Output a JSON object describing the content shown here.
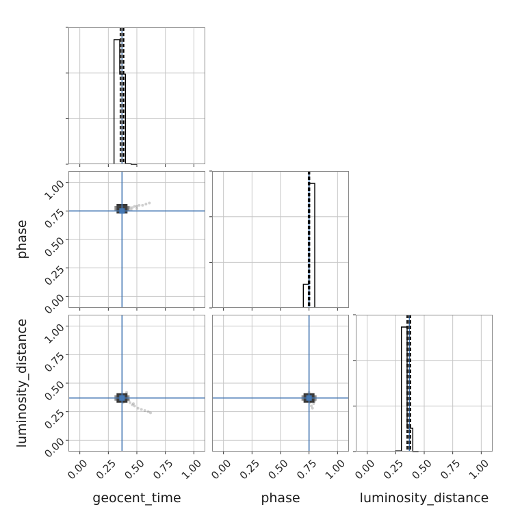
{
  "chart_data": {
    "type": "corner",
    "parameters": [
      "geocent_time",
      "phase",
      "luminosity_distance"
    ],
    "ticks": [
      "0.00",
      "0.25",
      "0.50",
      "0.75",
      "1.00"
    ],
    "tick_values": [
      0.0,
      0.25,
      0.5,
      0.75,
      1.0
    ],
    "axis_range": [
      -0.1,
      1.1
    ],
    "grid": true,
    "truth_color": "#4477b3",
    "truths": {
      "geocent_time": 0.37,
      "phase": 0.75,
      "luminosity_distance": 0.37
    },
    "histograms": [
      {
        "parameter": "geocent_time",
        "bin_edges": [
          0.3,
          0.35,
          0.4,
          0.45,
          0.5
        ],
        "values": [
          0.94,
          0.68,
          0.005,
          0
        ],
        "quantiles": [
          0.355,
          0.37,
          0.385
        ]
      },
      {
        "parameter": "phase",
        "bin_edges": [
          0.7,
          0.75,
          0.8
        ],
        "values": [
          0.19,
          1.0
        ],
        "quantiles": [
          0.745,
          0.75,
          0.755
        ]
      },
      {
        "parameter": "luminosity_distance",
        "bin_edges": [
          0.25,
          0.3,
          0.35,
          0.4,
          0.45
        ],
        "values": [
          0.005,
          0.96,
          0.18,
          0
        ],
        "quantiles": [
          0.35,
          0.365,
          0.38
        ]
      }
    ],
    "scatter_panels": [
      {
        "x": "geocent_time",
        "y": "phase",
        "core": {
          "x": 0.37,
          "y": 0.77
        },
        "points": [
          [
            0.37,
            0.76
          ],
          [
            0.35,
            0.77
          ],
          [
            0.39,
            0.78
          ],
          [
            0.38,
            0.75
          ],
          [
            0.36,
            0.74
          ],
          [
            0.4,
            0.76
          ],
          [
            0.42,
            0.77
          ],
          [
            0.44,
            0.78
          ],
          [
            0.46,
            0.78
          ],
          [
            0.48,
            0.79
          ],
          [
            0.5,
            0.79
          ],
          [
            0.52,
            0.8
          ],
          [
            0.55,
            0.8
          ],
          [
            0.58,
            0.81
          ],
          [
            0.61,
            0.82
          ],
          [
            0.45,
            0.76
          ],
          [
            0.5,
            0.77
          ]
        ]
      },
      {
        "x": "geocent_time",
        "y": "luminosity_distance",
        "core": {
          "x": 0.37,
          "y": 0.37
        },
        "points": [
          [
            0.37,
            0.38
          ],
          [
            0.36,
            0.36
          ],
          [
            0.39,
            0.37
          ],
          [
            0.4,
            0.4
          ],
          [
            0.41,
            0.42
          ],
          [
            0.38,
            0.33
          ],
          [
            0.35,
            0.37
          ],
          [
            0.42,
            0.36
          ],
          [
            0.44,
            0.33
          ],
          [
            0.46,
            0.31
          ],
          [
            0.48,
            0.3
          ],
          [
            0.51,
            0.28
          ],
          [
            0.54,
            0.27
          ],
          [
            0.57,
            0.26
          ],
          [
            0.6,
            0.25
          ],
          [
            0.62,
            0.24
          ],
          [
            0.43,
            0.35
          ],
          [
            0.47,
            0.32
          ]
        ]
      },
      {
        "x": "phase",
        "y": "luminosity_distance",
        "core": {
          "x": 0.75,
          "y": 0.37
        },
        "points": [
          [
            0.75,
            0.37
          ],
          [
            0.73,
            0.38
          ],
          [
            0.77,
            0.36
          ],
          [
            0.76,
            0.4
          ],
          [
            0.74,
            0.34
          ],
          [
            0.78,
            0.38
          ],
          [
            0.76,
            0.33
          ],
          [
            0.79,
            0.32
          ],
          [
            0.77,
            0.3
          ],
          [
            0.78,
            0.28
          ],
          [
            0.72,
            0.36
          ],
          [
            0.79,
            0.37
          ],
          [
            0.75,
            0.42
          ],
          [
            0.8,
            0.34
          ]
        ]
      }
    ]
  }
}
